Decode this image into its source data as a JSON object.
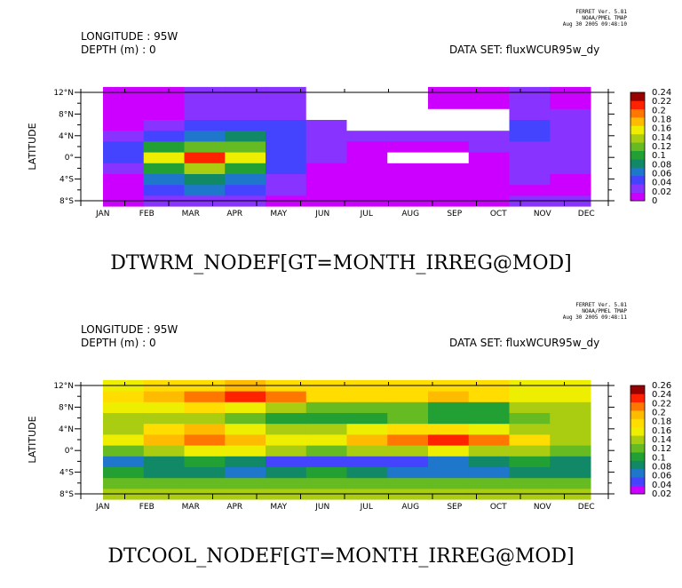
{
  "chart_data": [
    {
      "type": "heatmap",
      "header": {
        "lon": "LONGITUDE : 95W",
        "depth": "DEPTH (m) : 0",
        "dataset": "DATA SET: fluxWCUR95w_dy"
      },
      "stamp": [
        "FERRET Ver. 5.81",
        "NOAA/PMEL TMAP",
        "Aug 30 2005 09:48:10"
      ],
      "title": "DTWRM_NODEF[GT=MONTH_IRREG@MOD]",
      "ylabel": "LATITUDE",
      "x": [
        "JAN",
        "FEB",
        "MAR",
        "APR",
        "MAY",
        "JUN",
        "JUL",
        "AUG",
        "SEP",
        "OCT",
        "NOV",
        "DEC"
      ],
      "y": [
        -8,
        -6,
        -4,
        -2,
        0,
        2,
        4,
        6,
        8,
        10,
        12
      ],
      "ytick_labels": [
        "12°N",
        "8°N",
        "4°N",
        "0°",
        "4°S",
        "8°S"
      ],
      "ytick_values": [
        12,
        8,
        4,
        0,
        -4,
        -8
      ],
      "colorbar": [
        "0.24",
        "0.22",
        "0.2",
        "0.18",
        "0.16",
        "0.14",
        "0.12",
        "0.1",
        "0.08",
        "0.06",
        "0.04",
        "0.02",
        "0"
      ],
      "levels": [
        0,
        0.02,
        0.04,
        0.06,
        0.08,
        0.1,
        0.12,
        0.14,
        0.16,
        0.18,
        0.2,
        0.22,
        0.24
      ],
      "palette": [
        "#cc00ff",
        "#8833ff",
        "#4444ff",
        "#1f77cc",
        "#118866",
        "#22a033",
        "#66bb22",
        "#aacc11",
        "#eeee00",
        "#ffbb00",
        "#ff7700",
        "#ff2200",
        "#990000"
      ],
      "values": [
        [
          0.0,
          0.02,
          0.03,
          0.02,
          0.01,
          0.01,
          0.0,
          0.0,
          0.0,
          0.0,
          0.02,
          0.02
        ],
        [
          0.0,
          0.04,
          0.06,
          0.04,
          0.02,
          0.01,
          0.0,
          0.0,
          0.0,
          0.0,
          0.01,
          0.01
        ],
        [
          0.0,
          0.06,
          0.09,
          0.06,
          0.03,
          0.01,
          0.0,
          0.0,
          0.0,
          0.01,
          0.02,
          0.01
        ],
        [
          0.02,
          0.1,
          0.15,
          0.1,
          0.04,
          0.01,
          0.0,
          0.0,
          0.0,
          0.01,
          0.03,
          0.02
        ],
        [
          0.04,
          0.16,
          0.23,
          0.16,
          0.05,
          0.02,
          0.0,
          null,
          null,
          0.01,
          0.03,
          0.02
        ],
        [
          0.04,
          0.1,
          0.13,
          0.13,
          0.05,
          0.02,
          0.01,
          0.01,
          0.01,
          0.02,
          0.03,
          0.02
        ],
        [
          0.02,
          0.05,
          0.07,
          0.08,
          0.04,
          0.02,
          0.02,
          0.02,
          0.02,
          0.03,
          0.04,
          0.03
        ],
        [
          0.0,
          0.02,
          0.04,
          0.05,
          0.04,
          0.03,
          null,
          null,
          null,
          null,
          0.04,
          0.03
        ],
        [
          0.0,
          0.01,
          0.02,
          0.03,
          0.03,
          null,
          null,
          null,
          null,
          null,
          0.03,
          0.02
        ],
        [
          0.0,
          0.01,
          0.02,
          0.02,
          0.02,
          null,
          null,
          null,
          0.01,
          0.01,
          0.02,
          0.01
        ],
        [
          0.0,
          0.01,
          0.02,
          0.02,
          0.02,
          null,
          null,
          null,
          0.01,
          0.01,
          0.02,
          0.01
        ]
      ]
    },
    {
      "type": "heatmap",
      "header": {
        "lon": "LONGITUDE : 95W",
        "depth": "DEPTH (m) : 0",
        "dataset": "DATA SET: fluxWCUR95w_dy"
      },
      "stamp": [
        "FERRET Ver. 5.81",
        "NOAA/PMEL TMAP",
        "Aug 30 2005 09:48:11"
      ],
      "title": "DTCOOL_NODEF[GT=MONTH_IRREG@MOD]",
      "ylabel": "LATITUDE",
      "x": [
        "JAN",
        "FEB",
        "MAR",
        "APR",
        "MAY",
        "JUN",
        "JUL",
        "AUG",
        "SEP",
        "OCT",
        "NOV",
        "DEC"
      ],
      "y": [
        -8,
        -6,
        -4,
        -2,
        0,
        2,
        4,
        6,
        8,
        10,
        12
      ],
      "ytick_labels": [
        "12°N",
        "8°N",
        "4°N",
        "0°",
        "4°S",
        "8°S"
      ],
      "ytick_values": [
        12,
        8,
        4,
        0,
        -4,
        -8
      ],
      "colorbar": [
        "0.26",
        "0.24",
        "0.22",
        "0.2",
        "0.18",
        "0.16",
        "0.14",
        "0.12",
        "0.1",
        "0.08",
        "0.06",
        "0.04",
        "0.02"
      ],
      "levels": [
        0.02,
        0.04,
        0.06,
        0.08,
        0.1,
        0.12,
        0.14,
        0.16,
        0.18,
        0.2,
        0.22,
        0.24,
        0.26
      ],
      "palette": [
        "#cc00ff",
        "#4444ff",
        "#1f77cc",
        "#118866",
        "#22a033",
        "#66bb22",
        "#aacc11",
        "#eeee00",
        "#ffdd00",
        "#ffbb00",
        "#ff7700",
        "#ff2200",
        "#990000"
      ],
      "values": [
        [
          0.15,
          0.15,
          0.15,
          0.15,
          0.15,
          0.15,
          0.15,
          0.15,
          0.15,
          0.15,
          0.15,
          0.15
        ],
        [
          0.13,
          0.12,
          0.12,
          0.12,
          0.12,
          0.12,
          0.12,
          0.12,
          0.12,
          0.12,
          0.12,
          0.13
        ],
        [
          0.1,
          0.09,
          0.08,
          0.06,
          0.09,
          0.1,
          0.09,
          0.07,
          0.06,
          0.07,
          0.08,
          0.09
        ],
        [
          0.06,
          0.08,
          0.11,
          0.09,
          0.05,
          0.04,
          0.04,
          0.05,
          0.06,
          0.08,
          0.1,
          0.09
        ],
        [
          0.12,
          0.14,
          0.16,
          0.16,
          0.14,
          0.13,
          0.14,
          0.15,
          0.16,
          0.15,
          0.14,
          0.12
        ],
        [
          0.16,
          0.21,
          0.23,
          0.2,
          0.16,
          0.16,
          0.2,
          0.23,
          0.24,
          0.22,
          0.18,
          0.15
        ],
        [
          0.14,
          0.18,
          0.2,
          0.17,
          0.15,
          0.14,
          0.16,
          0.18,
          0.19,
          0.17,
          0.14,
          0.14
        ],
        [
          0.14,
          0.15,
          0.14,
          0.13,
          0.11,
          0.1,
          0.11,
          0.12,
          0.11,
          0.11,
          0.13,
          0.14
        ],
        [
          0.16,
          0.17,
          0.18,
          0.17,
          0.15,
          0.13,
          0.12,
          0.12,
          0.1,
          0.11,
          0.14,
          0.15
        ],
        [
          0.18,
          0.2,
          0.22,
          0.25,
          0.23,
          0.19,
          0.18,
          0.19,
          0.21,
          0.19,
          0.17,
          0.17
        ],
        [
          0.17,
          0.18,
          0.19,
          0.2,
          0.19,
          0.18,
          0.18,
          0.18,
          0.19,
          0.18,
          0.17,
          0.17
        ]
      ]
    }
  ]
}
